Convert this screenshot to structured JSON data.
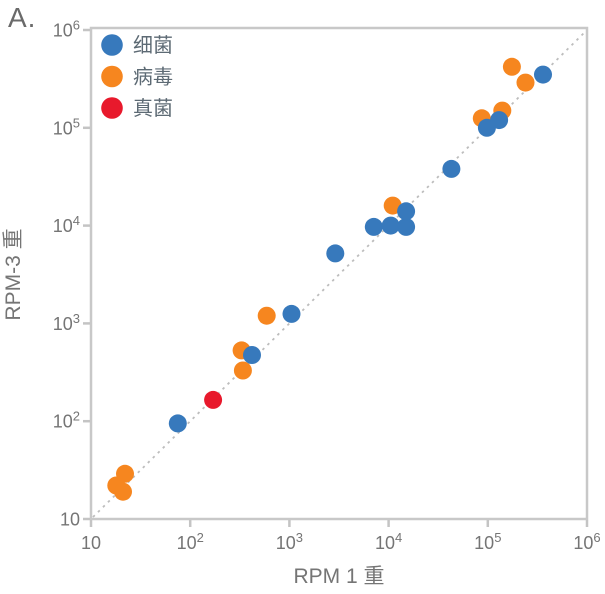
{
  "figure": {
    "label": "A."
  },
  "chart_data": {
    "type": "scatter",
    "title": "",
    "xlabel": "RPM 1 重",
    "ylabel": "RPM-3 重",
    "x_scale": "log",
    "y_scale": "log",
    "xlim": [
      10,
      1000000
    ],
    "ylim": [
      10,
      1000000
    ],
    "x_tick_values": [
      10,
      100,
      1000,
      10000,
      100000,
      1000000
    ],
    "y_tick_values": [
      10,
      100,
      1000,
      10000,
      100000,
      1000000
    ],
    "x_tick_labels": [
      "10",
      "10^2",
      "10^3",
      "10^4",
      "10^5",
      "10^6"
    ],
    "y_tick_labels": [
      "10",
      "10^2",
      "10^3",
      "10^4",
      "10^5",
      "10^6"
    ],
    "grid": false,
    "legend": {
      "position": "upper-left",
      "entries": [
        "细菌",
        "病毒",
        "真菌"
      ]
    },
    "reference_line": {
      "kind": "y=x",
      "style": "dashed",
      "color": "#BDBDBD",
      "from": [
        10,
        10
      ],
      "to": [
        1000000,
        1000000
      ]
    },
    "draw_order": [
      "病毒",
      "真菌",
      "细菌"
    ],
    "series": [
      {
        "name": "细菌",
        "color": "#3779BC",
        "points": [
          [
            75,
            95
          ],
          [
            420,
            475
          ],
          [
            1050,
            1250
          ],
          [
            2900,
            5200
          ],
          [
            7100,
            9700
          ],
          [
            10500,
            10000
          ],
          [
            15000,
            9700
          ],
          [
            15000,
            14000
          ],
          [
            43000,
            38000
          ],
          [
            98000,
            100000
          ],
          [
            130000,
            120000
          ],
          [
            360000,
            350000
          ]
        ]
      },
      {
        "name": "病毒",
        "color": "#F6861F",
        "points": [
          [
            18,
            22
          ],
          [
            21,
            19
          ],
          [
            22,
            29
          ],
          [
            340,
            330
          ],
          [
            330,
            530
          ],
          [
            590,
            1200
          ],
          [
            11000,
            16000
          ],
          [
            87000,
            125000
          ],
          [
            140000,
            150000
          ],
          [
            240000,
            290000
          ],
          [
            175000,
            420000
          ]
        ]
      },
      {
        "name": "真菌",
        "color": "#E8192C",
        "points": [
          [
            170,
            165
          ]
        ]
      }
    ],
    "style_colors": {
      "spine": "#C8C8C8",
      "tick": "#C4C4C4",
      "tick_label": "#757575",
      "axis_label": "#757575",
      "legend_text": "#5D6A74",
      "figure_label": "#6A6A6A"
    }
  }
}
